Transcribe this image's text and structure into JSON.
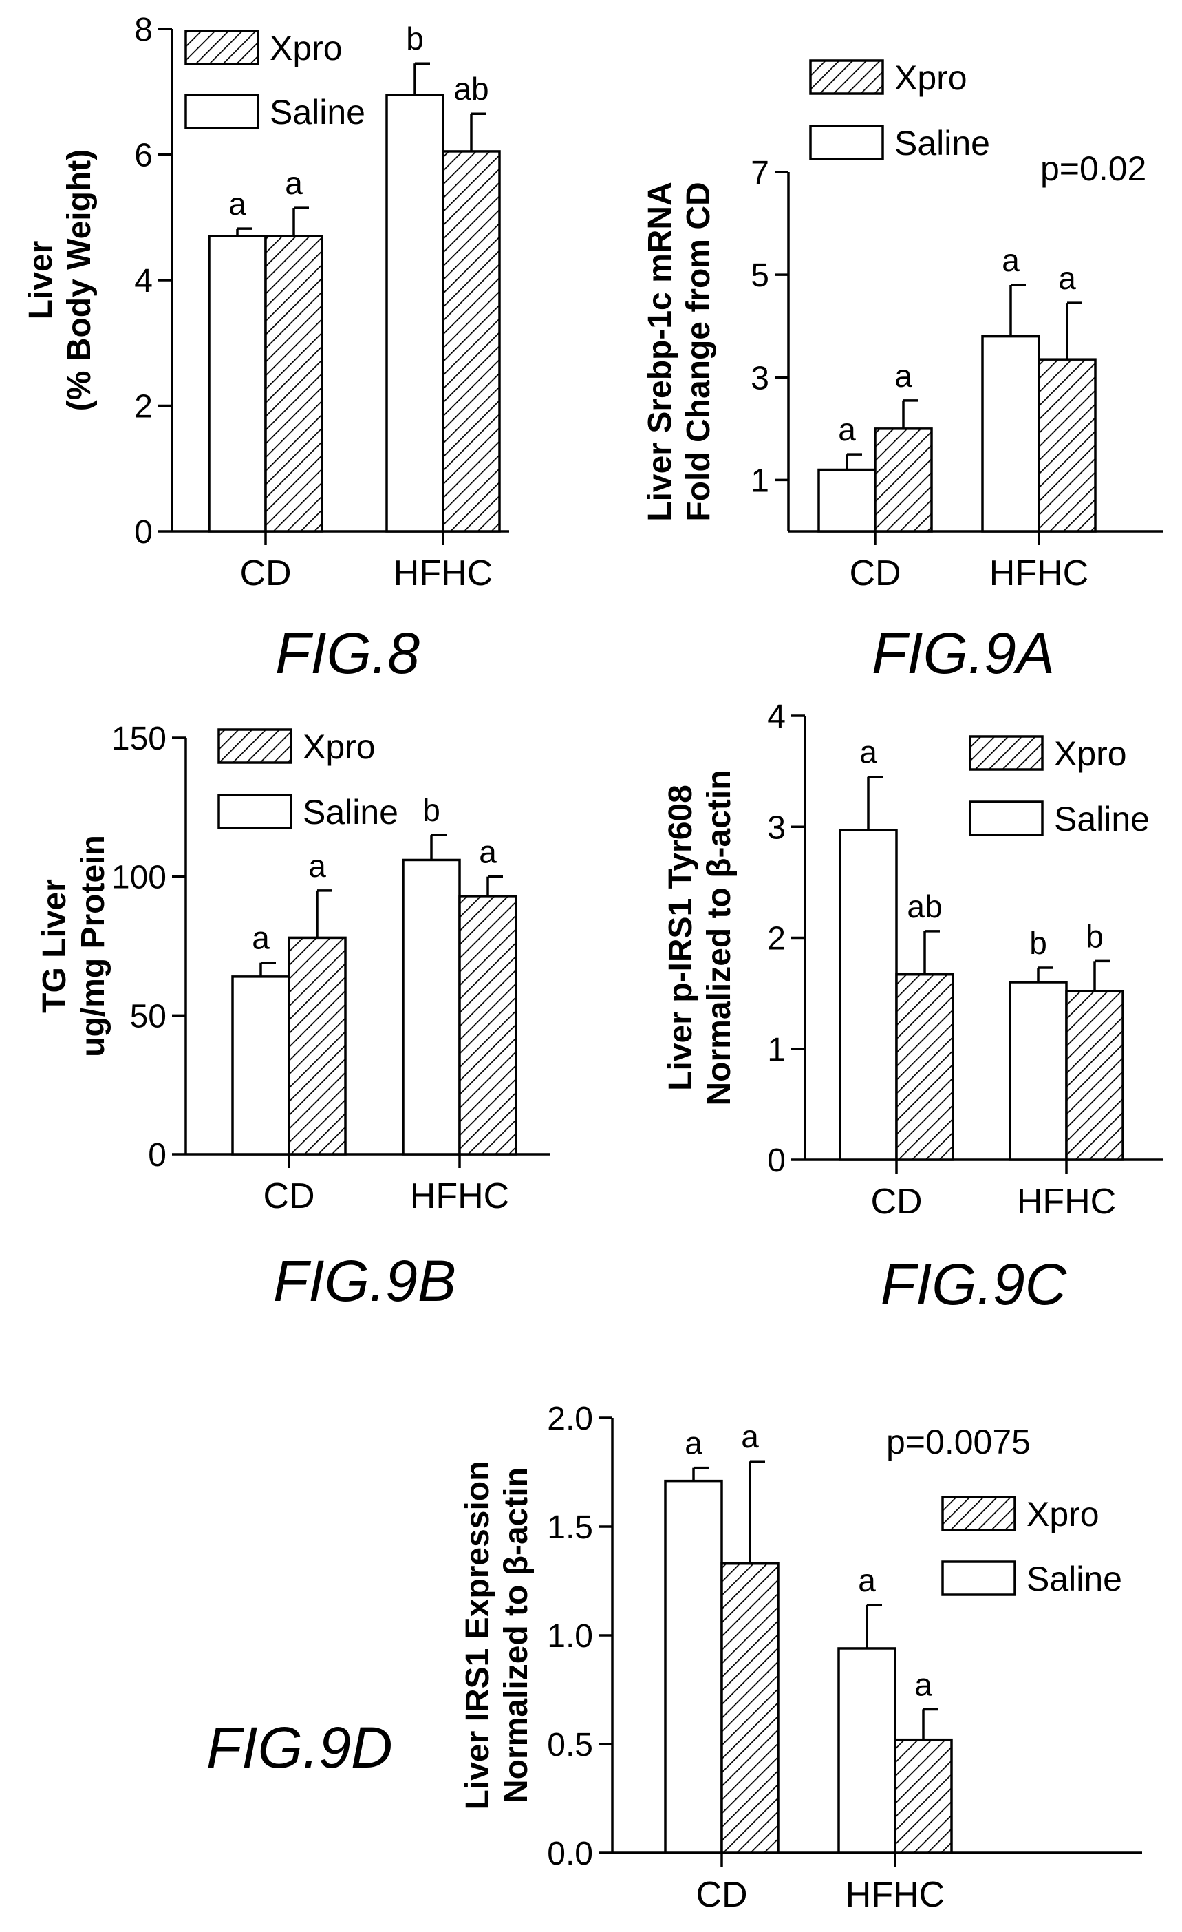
{
  "chart_data": [
    {
      "type": "bar",
      "figure_label": "FIG.8",
      "ylabel_lines": [
        "Liver",
        "(% Body Weight)"
      ],
      "categories": [
        "CD",
        "HFHC"
      ],
      "ylim": [
        0,
        8
      ],
      "yticks": [
        "0",
        "2",
        "4",
        "6",
        "8"
      ],
      "series": [
        {
          "name": "Saline",
          "pattern": "open",
          "values": [
            4.7,
            6.95
          ],
          "errors": [
            0.12,
            0.5
          ],
          "labels": [
            "a",
            "b"
          ]
        },
        {
          "name": "Xpro",
          "pattern": "hatched",
          "values": [
            4.7,
            6.05
          ],
          "errors": [
            0.45,
            0.6
          ],
          "labels": [
            "a",
            "ab"
          ]
        }
      ],
      "legend": [
        {
          "name": "Xpro",
          "pattern": "hatched"
        },
        {
          "name": "Saline",
          "pattern": "open"
        }
      ],
      "legend_position": "top-left",
      "annotation": ""
    },
    {
      "type": "bar",
      "figure_label": "FIG.9A",
      "ylabel_lines": [
        "Liver Srebp-1c mRNA",
        "Fold Change from CD"
      ],
      "categories": [
        "CD",
        "HFHC"
      ],
      "ylim": [
        0,
        7
      ],
      "yticks": [
        "1",
        "3",
        "5",
        "7"
      ],
      "series": [
        {
          "name": "Saline",
          "pattern": "open",
          "values": [
            1.2,
            3.8
          ],
          "errors": [
            0.3,
            1.0
          ],
          "labels": [
            "a",
            "a"
          ]
        },
        {
          "name": "Xpro",
          "pattern": "hatched",
          "values": [
            2.0,
            3.35
          ],
          "errors": [
            0.55,
            1.1
          ],
          "labels": [
            "a",
            "a"
          ]
        }
      ],
      "legend": [
        {
          "name": "Xpro",
          "pattern": "hatched"
        },
        {
          "name": "Saline",
          "pattern": "open"
        }
      ],
      "legend_position": "top",
      "annotation": "p=0.02"
    },
    {
      "type": "bar",
      "figure_label": "FIG.9B",
      "ylabel_lines": [
        "TG Liver",
        "ug/mg Protein"
      ],
      "categories": [
        "CD",
        "HFHC"
      ],
      "ylim": [
        0,
        150
      ],
      "yticks": [
        "0",
        "50",
        "100",
        "150"
      ],
      "series": [
        {
          "name": "Saline",
          "pattern": "open",
          "values": [
            64,
            106
          ],
          "errors": [
            5,
            9
          ],
          "labels": [
            "a",
            "b"
          ]
        },
        {
          "name": "Xpro",
          "pattern": "hatched",
          "values": [
            78,
            93
          ],
          "errors": [
            17,
            7
          ],
          "labels": [
            "a",
            "a"
          ]
        }
      ],
      "legend": [
        {
          "name": "Xpro",
          "pattern": "hatched"
        },
        {
          "name": "Saline",
          "pattern": "open"
        }
      ],
      "legend_position": "top-left",
      "annotation": ""
    },
    {
      "type": "bar",
      "figure_label": "FIG.9C",
      "ylabel_lines": [
        "Liver p-IRS1 Tyr608",
        "Normalized to β-actin"
      ],
      "categories": [
        "CD",
        "HFHC"
      ],
      "ylim": [
        0,
        4
      ],
      "yticks": [
        "0",
        "1",
        "2",
        "3",
        "4"
      ],
      "series": [
        {
          "name": "Saline",
          "pattern": "open",
          "values": [
            2.97,
            1.6
          ],
          "errors": [
            0.48,
            0.13
          ],
          "labels": [
            "a",
            "b"
          ]
        },
        {
          "name": "Xpro",
          "pattern": "hatched",
          "values": [
            1.67,
            1.52
          ],
          "errors": [
            0.39,
            0.27
          ],
          "labels": [
            "ab",
            "b"
          ]
        }
      ],
      "legend": [
        {
          "name": "Xpro",
          "pattern": "hatched"
        },
        {
          "name": "Saline",
          "pattern": "open"
        }
      ],
      "legend_position": "top-right",
      "annotation": ""
    },
    {
      "type": "bar",
      "figure_label": "FIG.9D",
      "ylabel_lines": [
        "Liver IRS1 Expression",
        "Normalized to β-actin"
      ],
      "categories": [
        "CD",
        "HFHC"
      ],
      "ylim": [
        0,
        2.0
      ],
      "yticks": [
        "0.0",
        "0.5",
        "1.0",
        "1.5",
        "2.0"
      ],
      "series": [
        {
          "name": "Saline",
          "pattern": "open",
          "values": [
            1.71,
            0.94
          ],
          "errors": [
            0.06,
            0.2
          ],
          "labels": [
            "a",
            "a"
          ]
        },
        {
          "name": "Xpro",
          "pattern": "hatched",
          "values": [
            1.33,
            0.52
          ],
          "errors": [
            0.47,
            0.14
          ],
          "labels": [
            "a",
            "a"
          ]
        }
      ],
      "legend": [
        {
          "name": "Xpro",
          "pattern": "hatched"
        },
        {
          "name": "Saline",
          "pattern": "open"
        }
      ],
      "legend_position": "top-right",
      "annotation": "p=0.0075"
    }
  ]
}
